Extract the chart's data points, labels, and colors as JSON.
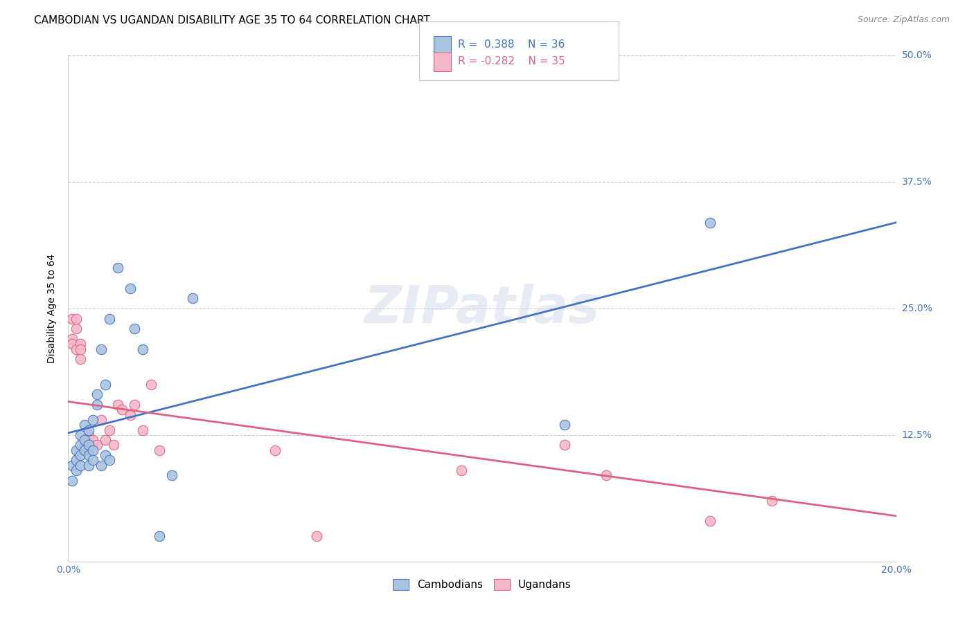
{
  "title": "CAMBODIAN VS UGANDAN DISABILITY AGE 35 TO 64 CORRELATION CHART",
  "source": "Source: ZipAtlas.com",
  "ylabel": "Disability Age 35 to 64",
  "xlim": [
    0.0,
    0.2
  ],
  "ylim": [
    0.0,
    0.5
  ],
  "xticks": [
    0.0,
    0.04,
    0.08,
    0.12,
    0.16,
    0.2
  ],
  "yticks": [
    0.0,
    0.125,
    0.25,
    0.375,
    0.5
  ],
  "xticklabels_show": [
    "0.0%",
    "20.0%"
  ],
  "yticklabels": [
    "",
    "12.5%",
    "25.0%",
    "37.5%",
    "50.0%"
  ],
  "cambodian_color": "#aac4e0",
  "ugandan_color": "#f4b8c8",
  "cambodian_line_color": "#4472c4",
  "ugandan_line_color": "#e06080",
  "legend_R_cambodian": "R =  0.388",
  "legend_N_cambodian": "N = 36",
  "legend_R_ugandan": "R = -0.282",
  "legend_N_ugandan": "N = 35",
  "legend_label_cambodian": "Cambodians",
  "legend_label_ugandan": "Ugandans",
  "watermark": "ZIPatlas",
  "cambodian_x": [
    0.001,
    0.001,
    0.002,
    0.002,
    0.002,
    0.003,
    0.003,
    0.003,
    0.003,
    0.004,
    0.004,
    0.004,
    0.005,
    0.005,
    0.005,
    0.005,
    0.006,
    0.006,
    0.006,
    0.007,
    0.007,
    0.008,
    0.008,
    0.009,
    0.009,
    0.01,
    0.01,
    0.012,
    0.015,
    0.016,
    0.018,
    0.022,
    0.025,
    0.03,
    0.12,
    0.155
  ],
  "cambodian_y": [
    0.095,
    0.08,
    0.1,
    0.11,
    0.09,
    0.115,
    0.105,
    0.095,
    0.125,
    0.11,
    0.12,
    0.135,
    0.115,
    0.095,
    0.13,
    0.105,
    0.11,
    0.14,
    0.1,
    0.165,
    0.155,
    0.21,
    0.095,
    0.105,
    0.175,
    0.1,
    0.24,
    0.29,
    0.27,
    0.23,
    0.21,
    0.025,
    0.085,
    0.26,
    0.135,
    0.335
  ],
  "ugandan_x": [
    0.001,
    0.001,
    0.001,
    0.002,
    0.002,
    0.002,
    0.003,
    0.003,
    0.003,
    0.004,
    0.004,
    0.004,
    0.005,
    0.005,
    0.006,
    0.006,
    0.007,
    0.008,
    0.009,
    0.01,
    0.011,
    0.012,
    0.013,
    0.015,
    0.016,
    0.018,
    0.02,
    0.022,
    0.05,
    0.06,
    0.095,
    0.12,
    0.13,
    0.155,
    0.17
  ],
  "ugandan_y": [
    0.24,
    0.22,
    0.215,
    0.23,
    0.21,
    0.24,
    0.215,
    0.2,
    0.21,
    0.115,
    0.12,
    0.11,
    0.125,
    0.11,
    0.115,
    0.12,
    0.115,
    0.14,
    0.12,
    0.13,
    0.115,
    0.155,
    0.15,
    0.145,
    0.155,
    0.13,
    0.175,
    0.11,
    0.11,
    0.025,
    0.09,
    0.115,
    0.085,
    0.04,
    0.06
  ],
  "cam_trend": [
    0.127,
    0.335
  ],
  "uga_trend": [
    0.158,
    0.045
  ],
  "title_fontsize": 11,
  "axis_label_fontsize": 10,
  "tick_fontsize": 10,
  "legend_fontsize": 11
}
